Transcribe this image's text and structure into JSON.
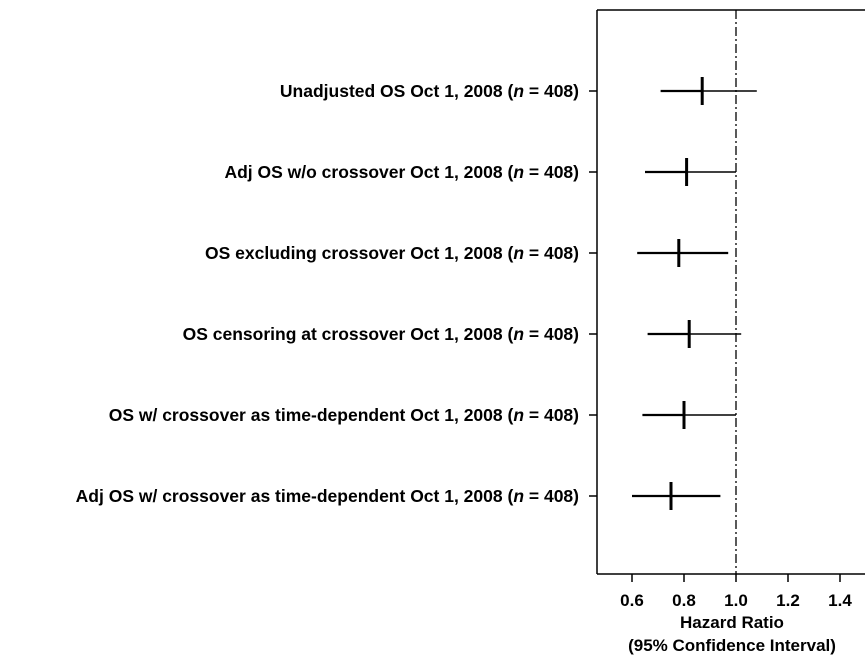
{
  "chart_data": {
    "type": "forest",
    "xlabel": "Hazard Ratio",
    "xlabel_line2": "(95% Confidence Interval)",
    "xlim": [
      0.45,
      1.5
    ],
    "xticks": [
      "0.6",
      "0.8",
      "1.0",
      "1.2",
      "1.4"
    ],
    "reference_line": 1.0,
    "rows": [
      {
        "label": "Unadjusted OS Oct 1, 2008 (",
        "italic": "n",
        "suffix": " = 408)",
        "estimate": 0.87,
        "lower": 0.71,
        "upper": 1.08
      },
      {
        "label": "Adj OS w/o crossover Oct 1, 2008 (",
        "italic": "n",
        "suffix": " = 408)",
        "estimate": 0.81,
        "lower": 0.65,
        "upper": 1.0
      },
      {
        "label": "OS excluding crossover Oct 1, 2008 (",
        "italic": "n",
        "suffix": " = 408)",
        "estimate": 0.78,
        "lower": 0.62,
        "upper": 0.97
      },
      {
        "label": "OS censoring at crossover Oct 1, 2008 (",
        "italic": "n",
        "suffix": " = 408)",
        "estimate": 0.82,
        "lower": 0.66,
        "upper": 1.02
      },
      {
        "label": "OS w/ crossover as time-dependent Oct 1, 2008 (",
        "italic": "n",
        "suffix": " = 408)",
        "estimate": 0.8,
        "lower": 0.64,
        "upper": 1.0
      },
      {
        "label": "Adj OS w/ crossover as time-dependent Oct 1, 2008 (",
        "italic": "n",
        "suffix": " = 408)",
        "estimate": 0.75,
        "lower": 0.6,
        "upper": 0.94
      }
    ]
  }
}
